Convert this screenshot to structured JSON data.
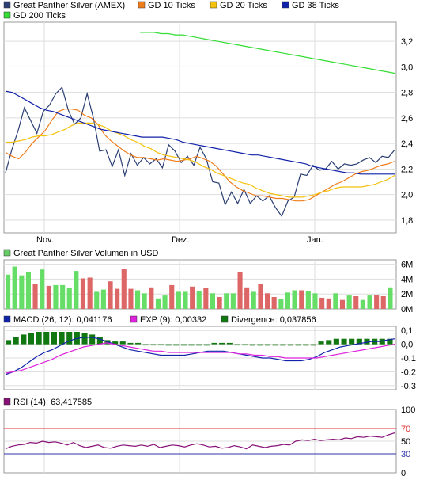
{
  "chart_data": [
    {
      "type": "line",
      "legend": [
        {
          "name": "Great Panther Silver (AMEX)",
          "color": "#2b3f74"
        },
        {
          "name": "GD 10 Ticks",
          "color": "#f07d1c"
        },
        {
          "name": "GD 20 Ticks",
          "color": "#f4c20d"
        },
        {
          "name": "GD 38 Ticks",
          "color": "#1122aa"
        },
        {
          "name": "GD 200 Ticks",
          "color": "#33dd33"
        }
      ],
      "x_labels": [
        "Nov.",
        "Dez.",
        "Jan."
      ],
      "y_ticks": [
        "3,2",
        "3,0",
        "2,8",
        "2,6",
        "2,4",
        "2,2",
        "2,0",
        "1,8"
      ],
      "ylim": [
        1.7,
        3.35
      ],
      "grid": true,
      "series": [
        {
          "name": "Great Panther Silver (AMEX)",
          "color": "#2b3f74",
          "values": [
            2.17,
            2.35,
            2.5,
            2.68,
            2.58,
            2.48,
            2.65,
            2.7,
            2.79,
            2.84,
            2.66,
            2.55,
            2.6,
            2.79,
            2.6,
            2.34,
            2.35,
            2.22,
            2.35,
            2.15,
            2.32,
            2.23,
            2.29,
            2.24,
            2.28,
            2.21,
            2.39,
            2.34,
            2.25,
            2.3,
            2.23,
            2.37,
            2.28,
            2.1,
            2.09,
            1.92,
            2.02,
            1.93,
            2.04,
            1.93,
            1.99,
            1.95,
            1.99,
            1.9,
            1.83,
            1.95,
            1.98,
            2.16,
            2.15,
            2.23,
            2.19,
            2.2,
            2.26,
            2.2,
            2.24,
            2.23,
            2.24,
            2.27,
            2.29,
            2.25,
            2.3,
            2.29,
            2.35
          ]
        },
        {
          "name": "GD 10 Ticks",
          "color": "#f07d1c",
          "values": [
            2.33,
            2.3,
            2.28,
            2.33,
            2.4,
            2.45,
            2.5,
            2.58,
            2.65,
            2.67,
            2.67,
            2.66,
            2.62,
            2.6,
            2.55,
            2.47,
            2.42,
            2.38,
            2.34,
            2.31,
            2.29,
            2.29,
            2.28,
            2.27,
            2.28,
            2.27,
            2.26,
            2.27,
            2.28,
            2.3,
            2.28,
            2.26,
            2.22,
            2.16,
            2.1,
            2.06,
            2.03,
            2.01,
            1.99,
            1.99,
            1.98,
            1.97,
            1.97,
            1.96,
            1.95,
            1.95,
            1.96,
            1.99,
            2.02,
            2.05,
            2.08,
            2.1,
            2.13,
            2.16,
            2.18,
            2.19,
            2.21,
            2.23,
            2.24,
            2.26
          ]
        },
        {
          "name": "GD 20 Ticks",
          "color": "#f4c20d",
          "values": [
            2.41,
            2.41,
            2.42,
            2.43,
            2.45,
            2.46,
            2.46,
            2.47,
            2.49,
            2.51,
            2.54,
            2.56,
            2.56,
            2.56,
            2.55,
            2.53,
            2.5,
            2.48,
            2.46,
            2.43,
            2.41,
            2.38,
            2.36,
            2.33,
            2.31,
            2.3,
            2.29,
            2.28,
            2.27,
            2.25,
            2.22,
            2.2,
            2.17,
            2.15,
            2.13,
            2.11,
            2.09,
            2.08,
            2.05,
            2.03,
            2.01,
            2.0,
            1.99,
            1.98,
            1.98,
            1.98,
            1.99,
            2.0,
            2.02,
            2.03,
            2.05,
            2.06,
            2.06,
            2.06,
            2.06,
            2.07,
            2.08,
            2.1,
            2.12,
            2.15
          ]
        },
        {
          "name": "GD 38 Ticks",
          "color": "#1122aa",
          "values": [
            2.81,
            2.8,
            2.77,
            2.74,
            2.71,
            2.68,
            2.66,
            2.65,
            2.63,
            2.61,
            2.59,
            2.57,
            2.55,
            2.53,
            2.51,
            2.5,
            2.49,
            2.48,
            2.47,
            2.46,
            2.45,
            2.45,
            2.45,
            2.45,
            2.44,
            2.43,
            2.41,
            2.4,
            2.39,
            2.38,
            2.37,
            2.36,
            2.35,
            2.34,
            2.33,
            2.32,
            2.31,
            2.31,
            2.3,
            2.29,
            2.28,
            2.27,
            2.26,
            2.25,
            2.24,
            2.22,
            2.21,
            2.2,
            2.19,
            2.18,
            2.17,
            2.17,
            2.16,
            2.16,
            2.16,
            2.16,
            2.16,
            2.16
          ]
        },
        {
          "name": "GD 200 Ticks",
          "color": "#33dd33",
          "values": [
            3.27,
            3.27,
            3.27,
            3.26,
            3.26,
            3.25,
            3.25,
            3.24,
            3.23,
            3.22,
            3.21,
            3.2,
            3.19,
            3.18,
            3.17,
            3.16,
            3.15,
            3.14,
            3.13,
            3.12,
            3.11,
            3.1,
            3.09,
            3.08,
            3.07,
            3.06,
            3.05,
            3.04,
            3.03,
            3.02,
            3.01,
            3.0,
            2.99,
            2.98,
            2.97,
            2.96,
            2.95
          ]
        }
      ]
    },
    {
      "type": "bar",
      "title": "Great Panther Silver Volumen in USD",
      "legend_color": "#66cc66",
      "y_ticks": [
        "6M",
        "4M",
        "2M",
        "0M"
      ],
      "ylim": [
        0,
        6.6
      ],
      "x_labels": [
        "Nov.",
        "Dez.",
        "Jan."
      ],
      "up_color": "#66dd66",
      "down_color": "#dd6666",
      "values": [
        4.6,
        5.7,
        4.5,
        4.9,
        3.3,
        5.3,
        3.1,
        3.2,
        3.2,
        2.8,
        5.1,
        4.1,
        4.2,
        2.3,
        2.6,
        3.7,
        2.7,
        5.4,
        2.7,
        2.5,
        2.1,
        2.9,
        1.4,
        1.8,
        3.2,
        2.3,
        2.3,
        3.0,
        2.4,
        2.8,
        2.1,
        1.6,
        2.1,
        2.1,
        4.9,
        2.9,
        2.3,
        3.3,
        2.1,
        1.6,
        1.3,
        2.2,
        2.5,
        2.5,
        2.4,
        2.1,
        1.5,
        1.4,
        2.1,
        1.2,
        1.8,
        1.7,
        1.2,
        1.8,
        1.9,
        1.7,
        2.9
      ],
      "up_down": [
        1,
        1,
        1,
        1,
        0,
        1,
        0,
        1,
        1,
        1,
        1,
        0,
        0,
        1,
        1,
        0,
        0,
        0,
        0,
        1,
        1,
        0,
        1,
        1,
        0,
        1,
        1,
        0,
        1,
        0,
        1,
        0,
        1,
        1,
        0,
        0,
        1,
        0,
        0,
        0,
        1,
        1,
        1,
        0,
        1,
        1,
        0,
        0,
        1,
        0,
        1,
        0,
        1,
        1,
        0,
        0,
        1
      ]
    },
    {
      "type": "line",
      "legend": [
        {
          "name": "MACD (26, 12): 0,041176",
          "color": "#1122aa"
        },
        {
          "name": "EXP (9): 0,00332",
          "color": "#dd22dd"
        },
        {
          "name": "Divergence: 0,037856",
          "color": "#117711"
        }
      ],
      "y_ticks": [
        "0,1",
        "0,0",
        "-0,1",
        "-0,2",
        "-0,3"
      ],
      "ylim": [
        -0.33,
        0.13
      ],
      "macd": [
        -0.22,
        -0.2,
        -0.17,
        -0.13,
        -0.09,
        -0.06,
        -0.04,
        -0.01,
        0.02,
        0.04,
        0.05,
        0.05,
        0.04,
        0.02,
        0.0,
        -0.02,
        -0.04,
        -0.05,
        -0.06,
        -0.07,
        -0.08,
        -0.08,
        -0.08,
        -0.08,
        -0.07,
        -0.06,
        -0.05,
        -0.05,
        -0.05,
        -0.06,
        -0.07,
        -0.08,
        -0.09,
        -0.1,
        -0.1,
        -0.11,
        -0.12,
        -0.12,
        -0.12,
        -0.11,
        -0.09,
        -0.06,
        -0.04,
        -0.02,
        -0.01,
        0.0,
        0.01,
        0.02,
        0.02,
        0.03,
        0.04
      ],
      "exp": [
        -0.21,
        -0.2,
        -0.19,
        -0.17,
        -0.15,
        -0.13,
        -0.11,
        -0.08,
        -0.06,
        -0.04,
        -0.02,
        -0.01,
        0.0,
        0.01,
        0.0,
        -0.01,
        -0.02,
        -0.03,
        -0.04,
        -0.05,
        -0.05,
        -0.06,
        -0.06,
        -0.06,
        -0.06,
        -0.06,
        -0.06,
        -0.06,
        -0.06,
        -0.06,
        -0.07,
        -0.07,
        -0.08,
        -0.08,
        -0.09,
        -0.09,
        -0.1,
        -0.1,
        -0.1,
        -0.1,
        -0.1,
        -0.09,
        -0.08,
        -0.07,
        -0.06,
        -0.05,
        -0.04,
        -0.03,
        -0.02,
        -0.01,
        0.0
      ],
      "divergence": [
        0.03,
        0.05,
        0.07,
        0.08,
        0.09,
        0.09,
        0.09,
        0.09,
        0.09,
        0.09,
        0.08,
        0.07,
        0.05,
        0.03,
        0.02,
        0.02,
        0.01,
        0.01,
        0.0,
        0.0,
        0.0,
        -0.01,
        -0.01,
        -0.01,
        -0.01,
        -0.01,
        -0.01,
        0.01,
        0.01,
        0.01,
        0.0,
        0.0,
        -0.01,
        -0.01,
        -0.01,
        -0.01,
        -0.01,
        -0.01,
        -0.01,
        -0.01,
        -0.01,
        0.02,
        0.03,
        0.04,
        0.04,
        0.04,
        0.04,
        0.04,
        0.04,
        0.04,
        0.04
      ]
    },
    {
      "type": "line",
      "legend": [
        {
          "name": "RSI (14): 63,417585",
          "color": "#881177"
        }
      ],
      "y_ticks": [
        "100",
        "70",
        "50",
        "30",
        "0"
      ],
      "ylim": [
        0,
        100
      ],
      "ref_lines": [
        {
          "value": 70,
          "color": "#dd3333"
        },
        {
          "value": 30,
          "color": "#3333aa"
        }
      ],
      "values": [
        38,
        42,
        44,
        45,
        48,
        47,
        50,
        48,
        49,
        47,
        44,
        48,
        43,
        40,
        42,
        44,
        40,
        39,
        42,
        44,
        43,
        42,
        44,
        42,
        45,
        40,
        42,
        44,
        43,
        41,
        44,
        46,
        44,
        41,
        42,
        39,
        40,
        43,
        41,
        38,
        44,
        42,
        40,
        42,
        43,
        45,
        44,
        50,
        52,
        51,
        53,
        51,
        52,
        53,
        52,
        55,
        54,
        57,
        56,
        58,
        57,
        56,
        60,
        63
      ]
    }
  ]
}
